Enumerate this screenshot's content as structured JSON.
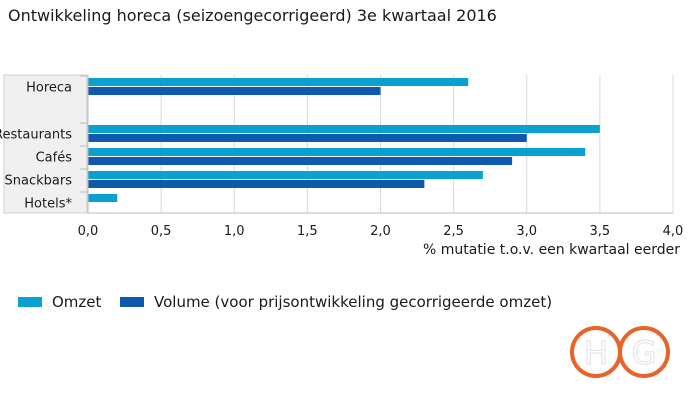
{
  "title": "Ontwikkeling horeca (seizoengecorrigeerd) 3e kwartaal 2016",
  "chart_data": {
    "type": "bar",
    "orientation": "horizontal",
    "title": "Ontwikkeling horeca (seizoengecorrigeerd) 3e kwartaal 2016",
    "categories": [
      "Horeca",
      "Restaurants",
      "Cafés",
      "Snackbars",
      "Hotels*"
    ],
    "series": [
      {
        "name": "Omzet",
        "color": "#0aa0d0",
        "values": [
          2.6,
          3.5,
          3.4,
          2.7,
          0.2
        ]
      },
      {
        "name": "Volume (voor prijsontwikkeling gecorrigeerde omzet)",
        "color": "#0f5aad",
        "values": [
          2.0,
          3.0,
          2.9,
          2.3,
          null
        ]
      }
    ],
    "xlabel": "% mutatie t.o.v. een kwartaal eerder",
    "ylabel": "",
    "xlim": [
      0,
      4.0
    ],
    "xticks": [
      "0,0",
      "0,5",
      "1,0",
      "1,5",
      "2,0",
      "2,5",
      "3,0",
      "3,5",
      "4,0"
    ],
    "grid": true,
    "legend_position": "bottom-left"
  },
  "logo": {
    "text": "HG",
    "color": "#e8642a"
  }
}
